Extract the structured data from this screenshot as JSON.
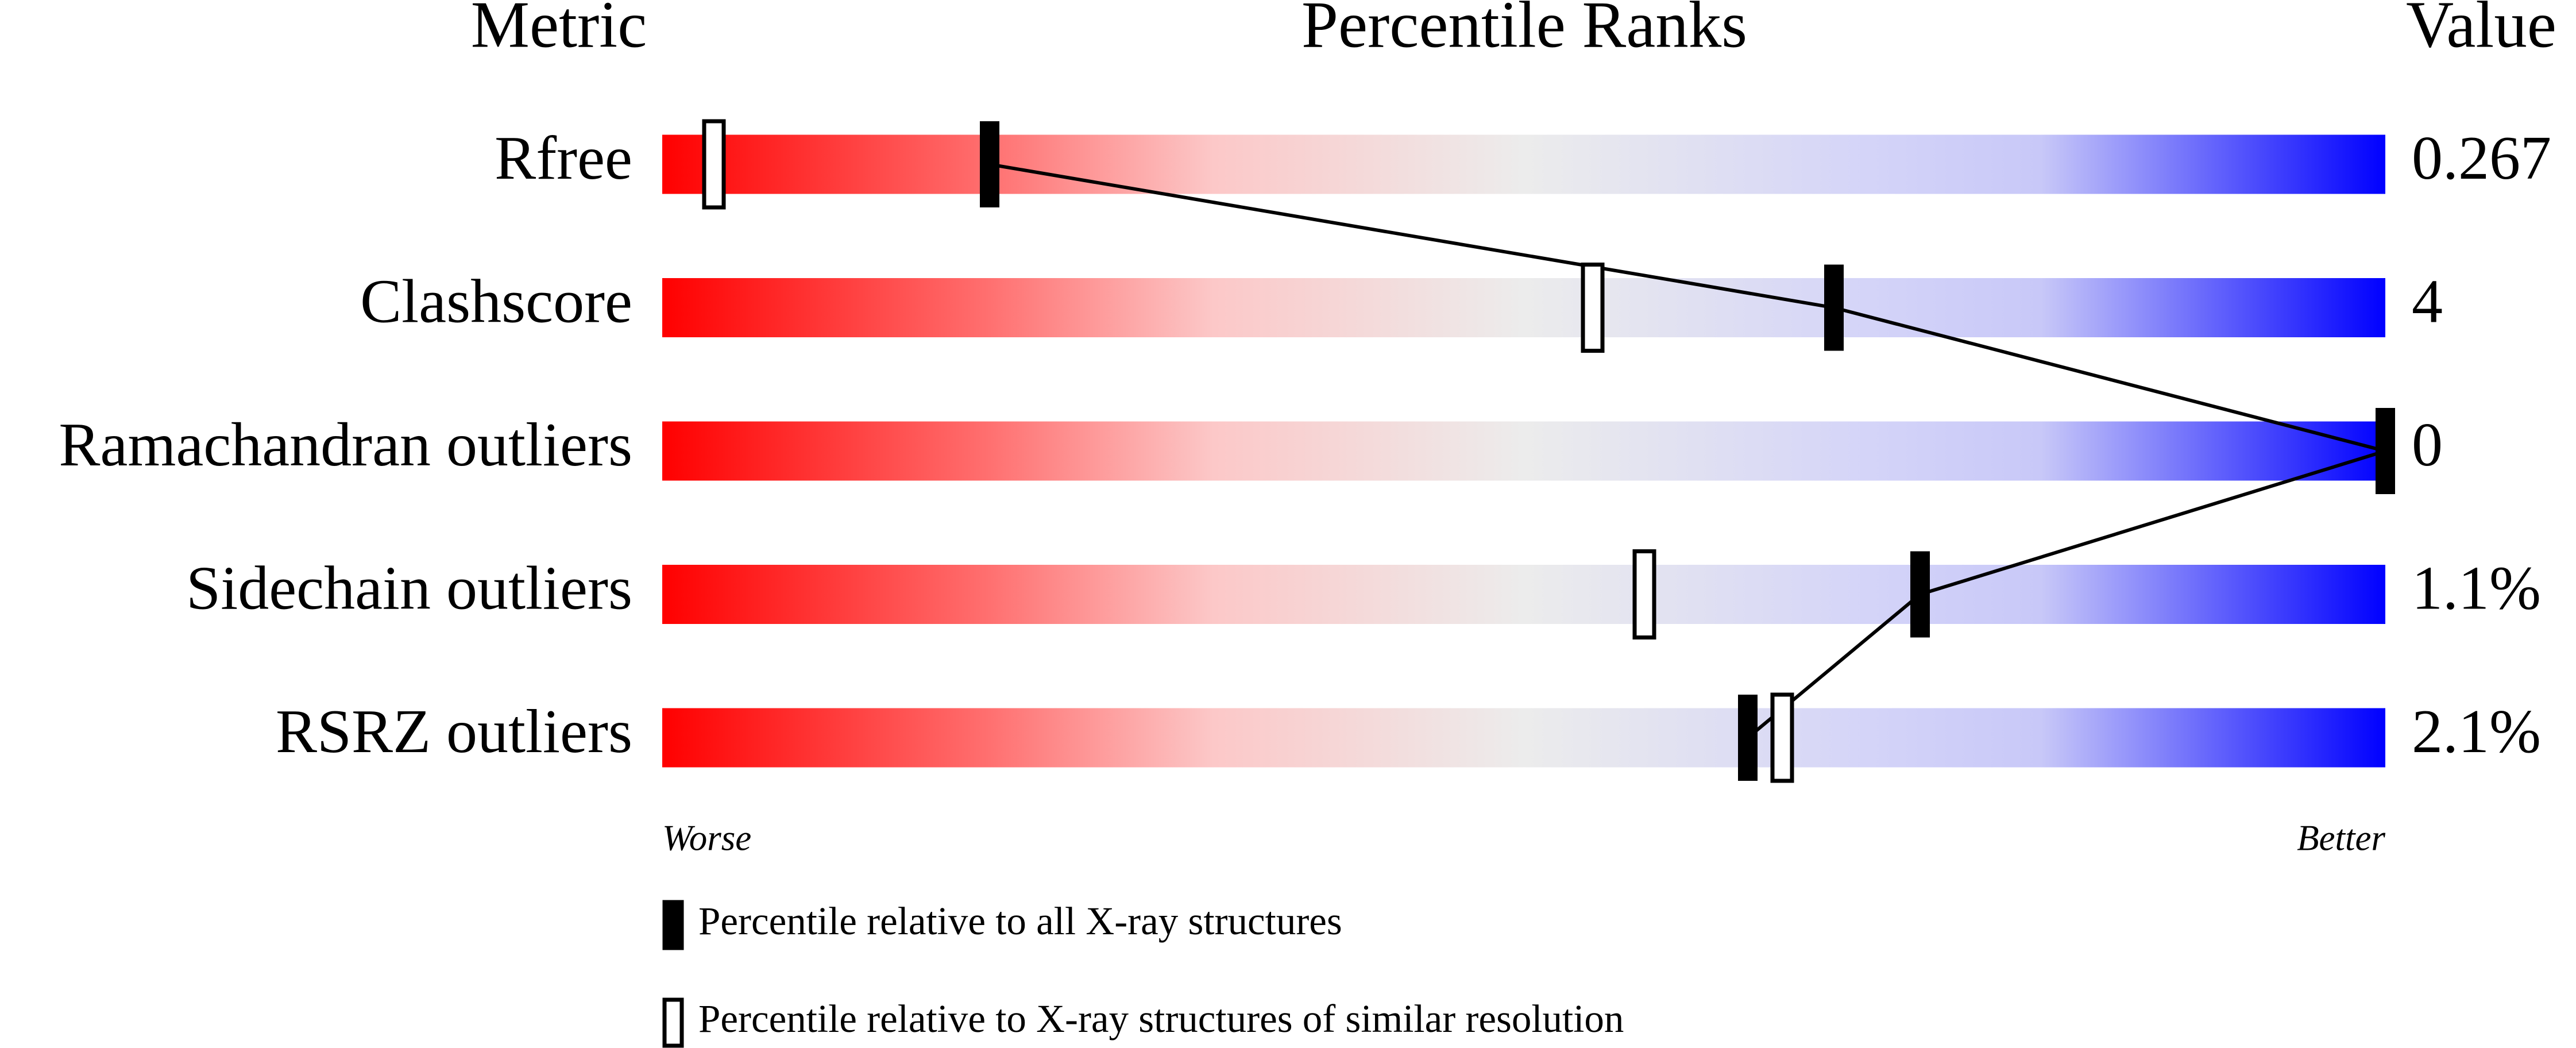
{
  "chart_data": {
    "type": "slider",
    "headers": {
      "metric": "Metric",
      "percentile": "Percentile Ranks",
      "value": "Value"
    },
    "categories": [
      "Rfree",
      "Clashscore",
      "Ramachandran outliers",
      "Sidechain outliers",
      "RSRZ outliers"
    ],
    "metric_values": [
      "0.267",
      "4",
      "0",
      "1.1%",
      "2.1%"
    ],
    "series": [
      {
        "name": "Percentile relative to all X-ray structures",
        "color": "#000000",
        "values": [
          19,
          68,
          100,
          73,
          63
        ]
      },
      {
        "name": "Percentile relative to X-ray structures of similar resolution",
        "color": "#ffffff",
        "values": [
          3,
          54,
          null,
          57,
          65
        ]
      }
    ],
    "xlim": [
      0,
      100
    ],
    "axis_labels": {
      "left": "Worse",
      "right": "Better"
    }
  }
}
